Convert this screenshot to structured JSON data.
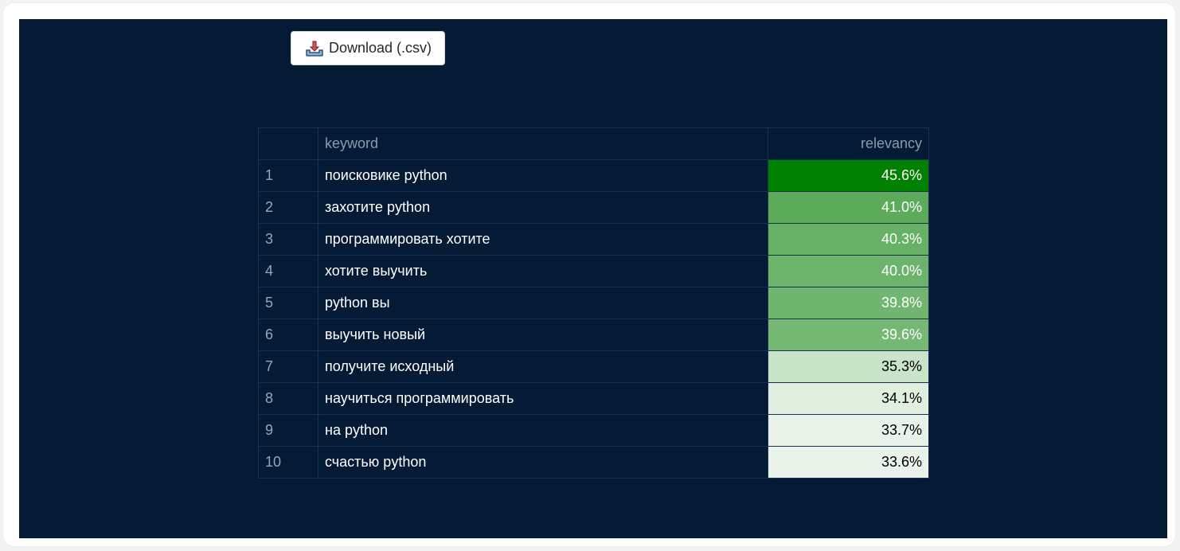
{
  "download": {
    "label": "Download (.csv)",
    "icon": "download-tray-icon"
  },
  "table": {
    "columns": {
      "index": "",
      "keyword": "keyword",
      "relevancy": "relevancy"
    },
    "rows": [
      {
        "index": "1",
        "keyword": "поисковике python",
        "relevancy": "45.6%",
        "bg": "#008000",
        "fg": "#ffffff"
      },
      {
        "index": "2",
        "keyword": "захотите python",
        "relevancy": "41.0%",
        "bg": "#5bab5b",
        "fg": "#ffffff"
      },
      {
        "index": "3",
        "keyword": "программировать хотите",
        "relevancy": "40.3%",
        "bg": "#66b166",
        "fg": "#ffffff"
      },
      {
        "index": "4",
        "keyword": "хотите выучить",
        "relevancy": "40.0%",
        "bg": "#6cb46c",
        "fg": "#ffffff"
      },
      {
        "index": "5",
        "keyword": "python вы",
        "relevancy": "39.8%",
        "bg": "#70b670",
        "fg": "#ffffff"
      },
      {
        "index": "6",
        "keyword": "выучить новый",
        "relevancy": "39.6%",
        "bg": "#74b874",
        "fg": "#ffffff"
      },
      {
        "index": "7",
        "keyword": "получите исходный",
        "relevancy": "35.3%",
        "bg": "#c9e4c9",
        "fg": "#000000"
      },
      {
        "index": "8",
        "keyword": "научиться программировать",
        "relevancy": "34.1%",
        "bg": "#e0efe0",
        "fg": "#000000"
      },
      {
        "index": "9",
        "keyword": "на python",
        "relevancy": "33.7%",
        "bg": "#e8f2e8",
        "fg": "#000000"
      },
      {
        "index": "10",
        "keyword": "счастью python",
        "relevancy": "33.6%",
        "bg": "#e9f3e9",
        "fg": "#000000"
      }
    ]
  }
}
